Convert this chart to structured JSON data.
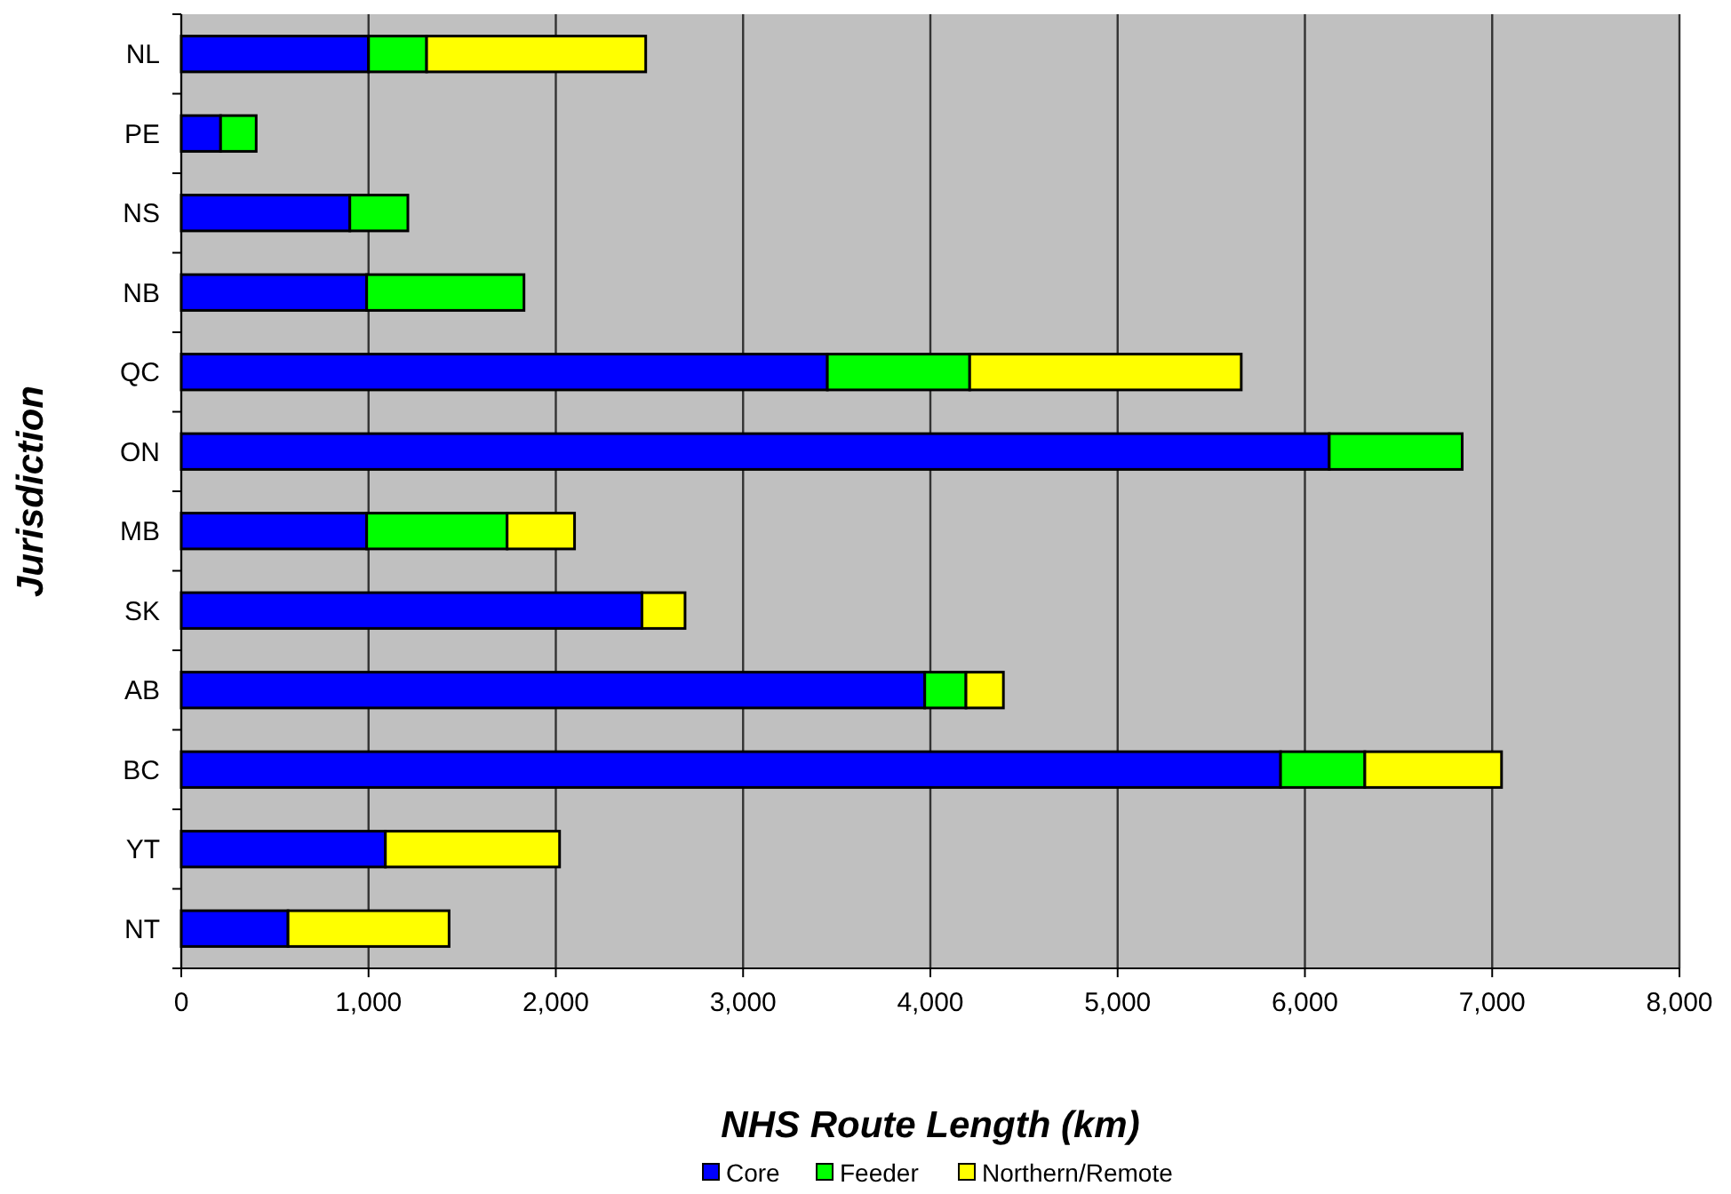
{
  "chart_data": {
    "type": "bar",
    "orientation": "horizontal",
    "stacked": true,
    "xlabel": "NHS Route Length (km)",
    "ylabel": "Jurisdiction",
    "categories": [
      "NL",
      "PE",
      "NS",
      "NB",
      "QC",
      "ON",
      "MB",
      "SK",
      "AB",
      "BC",
      "YT",
      "NT"
    ],
    "series": [
      {
        "name": "Core",
        "color": "#0000ff",
        "values": [
          1000,
          210,
          900,
          990,
          3450,
          6130,
          990,
          2460,
          3970,
          5870,
          1090,
          570
        ]
      },
      {
        "name": "Feeder",
        "color": "#00ff00",
        "values": [
          310,
          190,
          310,
          840,
          760,
          710,
          750,
          null,
          220,
          450,
          null,
          null
        ]
      },
      {
        "name": "Northern/Remote",
        "color": "#ffff00",
        "values": [
          1170,
          null,
          null,
          null,
          1450,
          null,
          360,
          230,
          200,
          730,
          930,
          860
        ]
      }
    ],
    "xlim": [
      0,
      8000
    ],
    "xticks": [
      {
        "value": 0,
        "label": "0"
      },
      {
        "value": 1000,
        "label": "1,000"
      },
      {
        "value": 2000,
        "label": "2,000"
      },
      {
        "value": 3000,
        "label": "3,000"
      },
      {
        "value": 4000,
        "label": "4,000"
      },
      {
        "value": 5000,
        "label": "5,000"
      },
      {
        "value": 6000,
        "label": "6,000"
      },
      {
        "value": 7000,
        "label": "7,000"
      },
      {
        "value": 8000,
        "label": "8,000"
      }
    ],
    "grid": "x",
    "legend": "bottom"
  }
}
